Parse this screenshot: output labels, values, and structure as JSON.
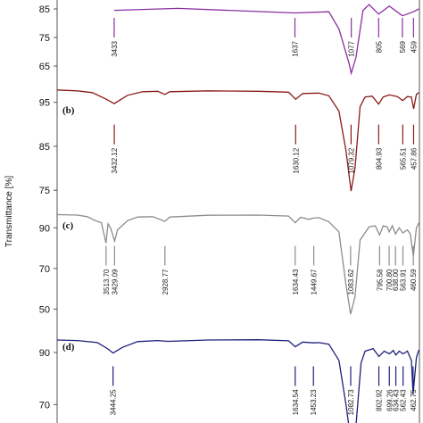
{
  "chart_data": {
    "type": "line",
    "ylabel": "Transmittance [%]",
    "xlim": [
      4000,
      400
    ],
    "panels": [
      {
        "label": "",
        "color": "#8b2fa0",
        "yticks": [
          85,
          75,
          65
        ],
        "ylim": [
          60,
          95
        ],
        "points": [
          [
            3433,
            84.5
          ],
          [
            2800,
            85.2
          ],
          [
            1637,
            83.6
          ],
          [
            1300,
            84.0
          ],
          [
            1200,
            78
          ],
          [
            1100,
            66
          ],
          [
            1077,
            62.5
          ],
          [
            1030,
            68
          ],
          [
            960,
            84.5
          ],
          [
            900,
            86.5
          ],
          [
            805,
            83.2
          ],
          [
            700,
            86.0
          ],
          [
            569,
            82.6
          ],
          [
            459,
            84.0
          ],
          [
            405,
            85
          ]
        ],
        "peaks": [
          {
            "label": "3433",
            "x": 3433
          },
          {
            "label": "1637",
            "x": 1637
          },
          {
            "label": "1077",
            "x": 1077
          },
          {
            "label": "805",
            "x": 805
          },
          {
            "label": "569",
            "x": 569
          },
          {
            "label": "459",
            "x": 459
          }
        ]
      },
      {
        "label": "(b)",
        "color": "#8b1a1a",
        "yticks": [
          95,
          85,
          75
        ],
        "ylim": [
          72,
          100
        ],
        "points": [
          [
            4000,
            97.8
          ],
          [
            3800,
            97.6
          ],
          [
            3650,
            97.2
          ],
          [
            3520,
            95.8
          ],
          [
            3432.12,
            94.7
          ],
          [
            3300,
            96.6
          ],
          [
            3150,
            97.4
          ],
          [
            3000,
            97.5
          ],
          [
            2930,
            96.8
          ],
          [
            2880,
            97.4
          ],
          [
            2500,
            97.6
          ],
          [
            2000,
            97.5
          ],
          [
            1700,
            97.3
          ],
          [
            1630.12,
            95.7
          ],
          [
            1560,
            97.0
          ],
          [
            1400,
            97.1
          ],
          [
            1300,
            96.5
          ],
          [
            1200,
            93
          ],
          [
            1130,
            84
          ],
          [
            1079.32,
            74.8
          ],
          [
            1040,
            80
          ],
          [
            990,
            94
          ],
          [
            940,
            96.2
          ],
          [
            870,
            96.4
          ],
          [
            804.93,
            94.6
          ],
          [
            760,
            96.2
          ],
          [
            700,
            96.7
          ],
          [
            620,
            96.3
          ],
          [
            565.51,
            95.4
          ],
          [
            520,
            96.3
          ],
          [
            480,
            96.2
          ],
          [
            457.86,
            93.5
          ],
          [
            430,
            96.8
          ],
          [
            405,
            97.2
          ]
        ],
        "peaks": [
          {
            "label": "3432.12",
            "x": 3432.12
          },
          {
            "label": "1630.12",
            "x": 1630.12
          },
          {
            "label": "1079.32",
            "x": 1079.32
          },
          {
            "label": "804.93",
            "x": 804.93
          },
          {
            "label": "565.51",
            "x": 565.51
          },
          {
            "label": "457.86",
            "x": 457.86
          }
        ]
      },
      {
        "label": "(c)",
        "color": "#8c8c8c",
        "yticks": [
          90,
          70,
          50
        ],
        "ylim": [
          44,
          102
        ],
        "points": [
          [
            4000,
            96.5
          ],
          [
            3800,
            96.3
          ],
          [
            3700,
            95.5
          ],
          [
            3620,
            93.5
          ],
          [
            3560,
            92.5
          ],
          [
            3530,
            86
          ],
          [
            3513.7,
            82.5
          ],
          [
            3495,
            92
          ],
          [
            3470,
            90
          ],
          [
            3450,
            87
          ],
          [
            3429.09,
            83.5
          ],
          [
            3400,
            89
          ],
          [
            3300,
            93.5
          ],
          [
            3200,
            95.3
          ],
          [
            3050,
            95.5
          ],
          [
            2930,
            93.2
          ],
          [
            2880,
            95.3
          ],
          [
            2500,
            96.2
          ],
          [
            2000,
            96.3
          ],
          [
            1700,
            95.8
          ],
          [
            1634.43,
            92.5
          ],
          [
            1580,
            95.2
          ],
          [
            1500,
            94.2
          ],
          [
            1449.67,
            94.8
          ],
          [
            1400,
            95.0
          ],
          [
            1300,
            93.0
          ],
          [
            1200,
            88
          ],
          [
            1130,
            62
          ],
          [
            1083.62,
            47.5
          ],
          [
            1040,
            56
          ],
          [
            990,
            84
          ],
          [
            900,
            90.5
          ],
          [
            840,
            91
          ],
          [
            795.58,
            86.5
          ],
          [
            760,
            91
          ],
          [
            720,
            90.5
          ],
          [
            700.8,
            88
          ],
          [
            670,
            91
          ],
          [
            638,
            87
          ],
          [
            600,
            90
          ],
          [
            563.91,
            87.5
          ],
          [
            520,
            89
          ],
          [
            490,
            87
          ],
          [
            460.59,
            76
          ],
          [
            430,
            90
          ],
          [
            405,
            92.5
          ]
        ],
        "peaks": [
          {
            "label": "3513.70",
            "x": 3513.7
          },
          {
            "label": "3429.09",
            "x": 3429.09
          },
          {
            "label": "2928.77",
            "x": 2928.77
          },
          {
            "label": "1634.43",
            "x": 1634.43
          },
          {
            "label": "1449.67",
            "x": 1449.67
          },
          {
            "label": "1083.62",
            "x": 1083.62
          },
          {
            "label": "795.58",
            "x": 795.58
          },
          {
            "label": "700.80",
            "x": 700.8
          },
          {
            "label": "638.00",
            "x": 638.0
          },
          {
            "label": "563.91",
            "x": 563.91
          },
          {
            "label": "460.59",
            "x": 460.59
          }
        ]
      },
      {
        "label": "(d)",
        "color": "#1c1f7a",
        "yticks": [
          90,
          70
        ],
        "ylim": [
          54,
          102
        ],
        "points": [
          [
            4000,
            94.8
          ],
          [
            3800,
            94.6
          ],
          [
            3600,
            93.8
          ],
          [
            3500,
            91.5
          ],
          [
            3444.25,
            89.8
          ],
          [
            3350,
            92
          ],
          [
            3200,
            94.2
          ],
          [
            3000,
            94.6
          ],
          [
            2900,
            94.3
          ],
          [
            2500,
            94.8
          ],
          [
            2000,
            94.9
          ],
          [
            1700,
            94.5
          ],
          [
            1634.54,
            92.2
          ],
          [
            1560,
            94.0
          ],
          [
            1453.23,
            93.7
          ],
          [
            1400,
            93.8
          ],
          [
            1300,
            93.2
          ],
          [
            1200,
            87
          ],
          [
            1130,
            70
          ],
          [
            1082.73,
            56.5
          ],
          [
            1030,
            62
          ],
          [
            980,
            86
          ],
          [
            940,
            90.5
          ],
          [
            860,
            91.5
          ],
          [
            802.92,
            88.5
          ],
          [
            750,
            90.5
          ],
          [
            699.26,
            89.5
          ],
          [
            660,
            90.8
          ],
          [
            634.43,
            89.0
          ],
          [
            600,
            90.5
          ],
          [
            562.43,
            89.5
          ],
          [
            520,
            90.5
          ],
          [
            480,
            87
          ],
          [
            462.75,
            74
          ],
          [
            430,
            88
          ],
          [
            405,
            91
          ]
        ],
        "peaks": [
          {
            "label": "3444.25",
            "x": 3444.25
          },
          {
            "label": "1634.54",
            "x": 1634.54
          },
          {
            "label": "1453.23",
            "x": 1453.23
          },
          {
            "label": "1082.73",
            "x": 1082.73
          },
          {
            "label": "802.92",
            "x": 802.92
          },
          {
            "label": "699.26",
            "x": 699.26
          },
          {
            "label": "634.43",
            "x": 634.43
          },
          {
            "label": "562.43",
            "x": 562.43
          },
          {
            "label": "462.75",
            "x": 462.75
          }
        ]
      }
    ]
  }
}
